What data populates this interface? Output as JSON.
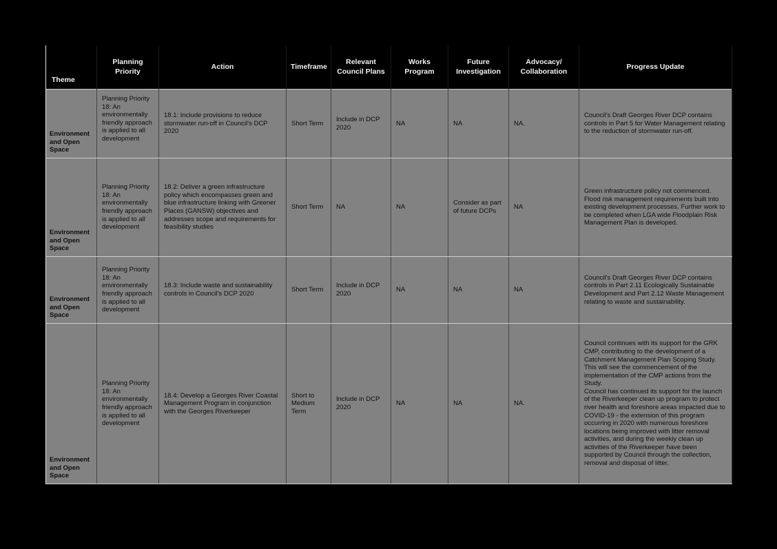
{
  "table": {
    "columns": [
      "Theme",
      "Planning Priority",
      "Action",
      "Timeframe",
      "Relevant  Council Plans",
      "Works  Program",
      "Future Investigation",
      "Advocacy/  Collaboration",
      "Progress Update"
    ],
    "rows": [
      {
        "theme": "Environment and Open Space",
        "priority": "Planning Priority 18: An environmentally friendly approach is applied to all development",
        "action": "18.1: Include provisions to reduce stormwater run-off in Council's DCP 2020",
        "timeframe": "Short Term",
        "plans": "Include in DCP 2020",
        "works": "NA",
        "future": "NA",
        "advocacy": "NA.",
        "progress": "Council's Draft Georges River DCP contains controls in Part 5 for Water Management relating to the reduction of stormwater run-off."
      },
      {
        "theme": "Environment and Open Space",
        "priority": "Planning Priority 18: An environmentally friendly approach is applied to all development",
        "action": "18.2: Deliver a green infrastructure policy which encompasses green and blue infrastructure linking with Greener Places (GANSW) objectives and addresses scope and requirements for feasibility studies",
        "timeframe": "Short Term",
        "plans": "NA",
        "works": "NA",
        "future": "Consider as part of future DCPs",
        "advocacy": "NA",
        "progress": "Green infrastructure policy not commenced. Flood risk management requirements built into existing development processes. Further work to be completed when LGA wide Floodplain Risk Management Plan is developed."
      },
      {
        "theme": "Environment and Open Space",
        "priority": "Planning Priority 18: An environmentally friendly approach is applied to all development",
        "action": "18.3: Include waste and sustainability controls in Council's DCP 2020",
        "timeframe": "Short Term",
        "plans": "Include in DCP 2020",
        "works": "NA",
        "future": "NA",
        "advocacy": "NA",
        "progress": "Council's Draft Georges River DCP contains controls in Part 2.11 Ecologically Sustainable Development and Part 2.12 Waste Management relating to waste and sustainability."
      },
      {
        "theme": "Environment and Open Space",
        "priority": "Planning Priority 18: An environmentally friendly approach is applied to all development",
        "action": "18.4: Develop a Georges River Coastal Management Program in conjunction with the Georges Riverkeeper",
        "timeframe": "Short to Medium Term",
        "plans": "Include in DCP 2020",
        "works": "NA",
        "future": "NA",
        "advocacy": "NA.",
        "progress": "Council continues with its support for the GRK CMP, contributing to the development of a Catchment Management Plan Scoping Study. This will see the commencement of the implementation of the CMP actions from the Study.\nCouncil has continued its support for the launch of the Riverkeeper clean up program to protect river health and foreshore areas impacted due to COVID-19 - the extension of this program occurring in 2020 with numerous foreshore locations being improved with litter removal activities, and during the weekly clean up activities of the Riverkeeper have been supported by Council through the collection, removal and disposal of litter."
      }
    ]
  }
}
